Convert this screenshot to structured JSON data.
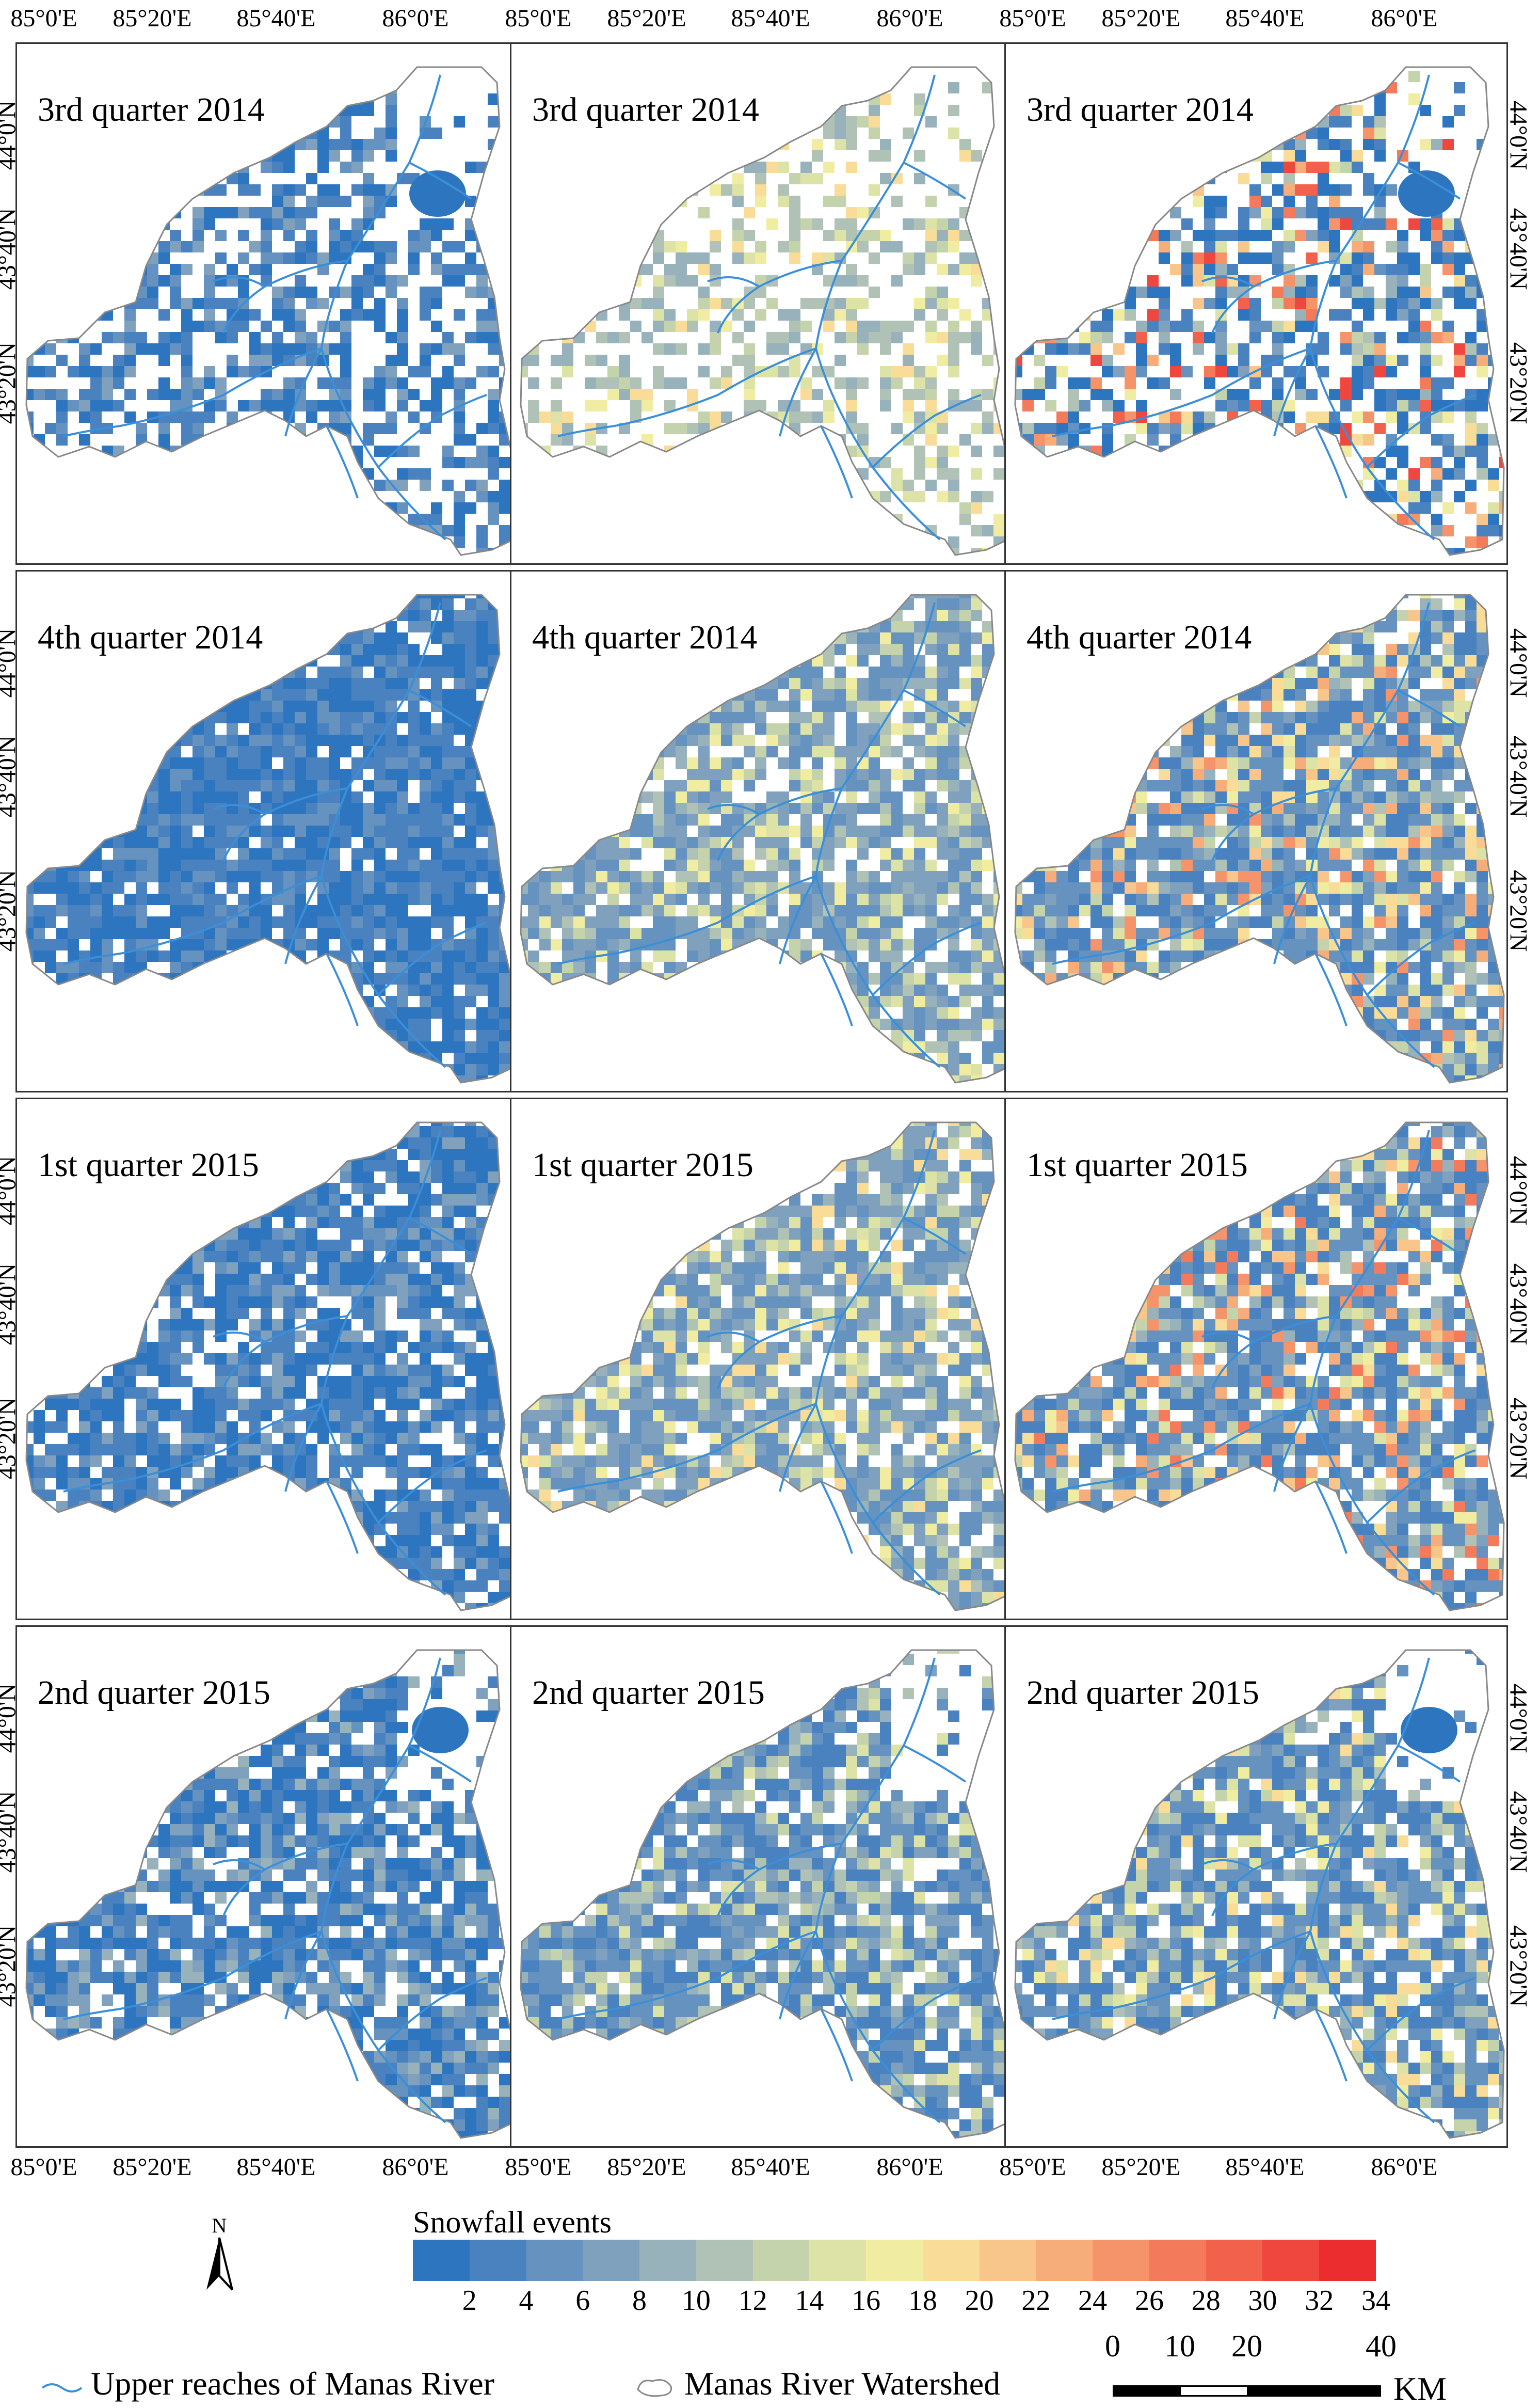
{
  "panels": [
    {
      "title": "3rd quarter 2014",
      "row": 0,
      "col": 0
    },
    {
      "title": "3rd quarter 2014",
      "row": 0,
      "col": 1
    },
    {
      "title": "3rd quarter 2014",
      "row": 0,
      "col": 2
    },
    {
      "title": "4th quarter 2014",
      "row": 1,
      "col": 0
    },
    {
      "title": "4th quarter 2014",
      "row": 1,
      "col": 1
    },
    {
      "title": "4th quarter 2014",
      "row": 1,
      "col": 2
    },
    {
      "title": "1st quarter 2015",
      "row": 2,
      "col": 0
    },
    {
      "title": "1st quarter 2015",
      "row": 2,
      "col": 1
    },
    {
      "title": "1st quarter 2015",
      "row": 2,
      "col": 2
    },
    {
      "title": "2nd quarter 2015",
      "row": 3,
      "col": 0
    },
    {
      "title": "2nd quarter 2015",
      "row": 3,
      "col": 1
    },
    {
      "title": "2nd quarter 2015",
      "row": 3,
      "col": 2
    }
  ],
  "lon_ticks": [
    "85°0'E",
    "85°20'E",
    "85°40'E",
    "86°0'E"
  ],
  "lat_ticks": [
    "44°0'N",
    "43°40'N",
    "43°20'N"
  ],
  "legend": {
    "title": "Snowfall events",
    "labels": [
      "2",
      "4",
      "6",
      "8",
      "10",
      "12",
      "14",
      "16",
      "18",
      "20",
      "22",
      "24",
      "26",
      "28",
      "30",
      "32",
      "34"
    ],
    "colors": [
      "#2e75c0",
      "#4a82bf",
      "#6592be",
      "#7fa1bd",
      "#97b2bb",
      "#afc2b5",
      "#c5d3ad",
      "#dde3a6",
      "#f0eca2",
      "#f8dc98",
      "#f8c68a",
      "#f7ad7a",
      "#f5946a",
      "#f37b5b",
      "#f1614c",
      "#ef473e",
      "#ec2d30"
    ]
  },
  "river_label": "Upper reaches of Manas River",
  "watershed_label": "Manas River Watershed",
  "north_label": "N",
  "scale": {
    "labels": [
      "0",
      "10",
      "20",
      "40"
    ],
    "unit": "KM"
  }
}
